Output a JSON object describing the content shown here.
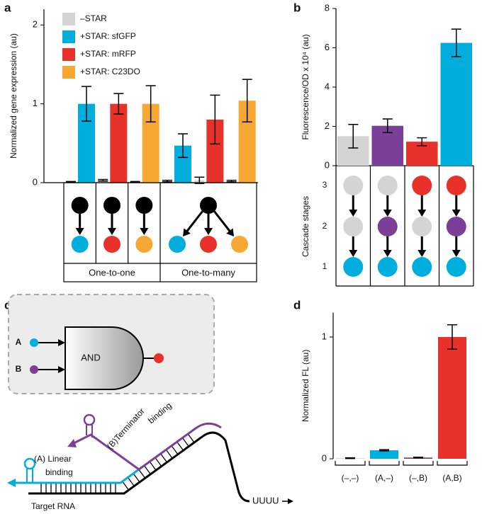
{
  "chart_data": [
    {
      "panel": "a",
      "type": "bar",
      "ylabel": "Normalized gene expression (au)",
      "categories": [
        null,
        null,
        null,
        null,
        null,
        null
      ],
      "series": [
        {
          "name": "–STAR",
          "color": "#d4d4d4",
          "values": [
            0.01,
            0.03,
            0.01,
            0.02,
            0.03,
            0.02
          ],
          "errors": [
            0.005,
            0.01,
            0.005,
            0.01,
            0.04,
            0.01
          ]
        },
        {
          "name": "+STAR: sfGFP",
          "color": "#00aede",
          "values": [
            1.0,
            null,
            null,
            0.47,
            null,
            null
          ],
          "errors": [
            0.22,
            null,
            null,
            0.15,
            null,
            null
          ]
        },
        {
          "name": "+STAR: mRFP",
          "color": "#e8312a",
          "values": [
            null,
            1.0,
            null,
            null,
            0.8,
            null
          ],
          "errors": [
            null,
            0.13,
            null,
            null,
            0.31,
            null
          ]
        },
        {
          "name": "+STAR: C23DO",
          "color": "#f7a833",
          "values": [
            null,
            null,
            1.0,
            null,
            null,
            1.04
          ],
          "errors": [
            null,
            null,
            0.23,
            null,
            null,
            0.27
          ]
        }
      ],
      "ylim": [
        0,
        2.2
      ],
      "yticks": [
        0,
        1,
        2
      ],
      "legend": "top-left",
      "groups": [
        {
          "label": "One-to-one"
        },
        {
          "label": "One-to-many"
        }
      ]
    },
    {
      "panel": "b",
      "type": "bar",
      "ylabel": "Fluorescence/OD x 10⁴ (au)",
      "categories": [
        null,
        null,
        null,
        null
      ],
      "values": [
        1.5,
        2.03,
        1.22,
        6.25
      ],
      "errors": [
        0.6,
        0.35,
        0.2,
        0.7
      ],
      "colors": [
        "#d4d4d4",
        "#7b3f98",
        "#e8312a",
        "#00aede"
      ],
      "ylim": [
        0,
        8
      ],
      "yticks": [
        0,
        2,
        4,
        6,
        8
      ],
      "stage_label": "Cascade stages",
      "stage_ticks": [
        3,
        2,
        1
      ]
    },
    {
      "panel": "d",
      "type": "bar",
      "ylabel": "Normalized FL (au)",
      "categories": [
        "(–,–)",
        "(A,–)",
        "(–,B)",
        "(A,B)"
      ],
      "values": [
        0.005,
        0.07,
        0.01,
        1.0
      ],
      "errors": [
        0.003,
        0.005,
        0.003,
        0.1
      ],
      "colors": [
        "#d4d4d4",
        "#00aede",
        "#7b3f98",
        "#e8312a"
      ],
      "ylim": [
        0,
        1.2
      ],
      "yticks": [
        0,
        1
      ]
    }
  ],
  "diagram": {
    "panel": "c",
    "inputs": [
      "A",
      "B"
    ],
    "gate": "AND",
    "binding_a": [
      "(A) Linear",
      "binding"
    ],
    "binding_b": [
      "(B)Terminator",
      "binding"
    ],
    "target": "Target RNA",
    "tail": "UUUU"
  }
}
